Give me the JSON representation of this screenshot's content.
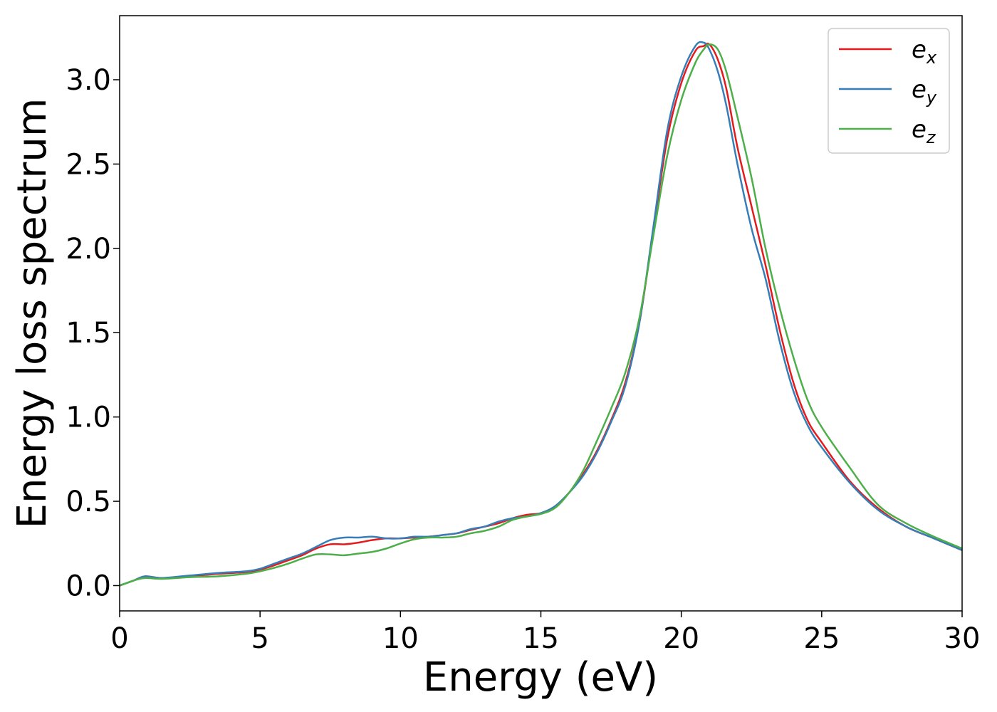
{
  "chart_data": {
    "type": "line",
    "title": "",
    "xlabel": "Energy (eV)",
    "ylabel": "Energy loss spectrum",
    "xlim": [
      0,
      30
    ],
    "ylim": [
      -0.15,
      3.38
    ],
    "xticks": [
      0,
      5,
      10,
      15,
      20,
      25,
      30
    ],
    "xtick_labels": [
      "0",
      "5",
      "10",
      "15",
      "20",
      "25",
      "30"
    ],
    "yticks": [
      0.0,
      0.5,
      1.0,
      1.5,
      2.0,
      2.5,
      3.0
    ],
    "ytick_labels": [
      "0.0",
      "0.5",
      "1.0",
      "1.5",
      "2.0",
      "2.5",
      "3.0"
    ],
    "grid": false,
    "legend_position": "top-right",
    "series": [
      {
        "name": "e",
        "subscript": "x",
        "color": "#e41a1c",
        "x": [
          0,
          0.5,
          0.9,
          1.5,
          2.5,
          3.5,
          4.5,
          5.0,
          5.5,
          6.0,
          6.5,
          7.0,
          7.5,
          8.0,
          8.5,
          9.0,
          9.5,
          10.0,
          10.5,
          11.0,
          11.5,
          12.0,
          12.5,
          13.0,
          13.5,
          14.0,
          14.5,
          15.0,
          15.5,
          16.0,
          16.5,
          17.0,
          17.5,
          18.0,
          18.5,
          19.0,
          19.5,
          20.0,
          20.5,
          20.8,
          21.0,
          21.3,
          21.6,
          22.0,
          22.5,
          23.0,
          23.5,
          24.0,
          24.5,
          25.0,
          26.0,
          27.0,
          28.0,
          29.0,
          30.0
        ],
        "y": [
          0.0,
          0.03,
          0.055,
          0.045,
          0.055,
          0.07,
          0.08,
          0.095,
          0.12,
          0.15,
          0.18,
          0.22,
          0.245,
          0.245,
          0.255,
          0.27,
          0.28,
          0.28,
          0.285,
          0.29,
          0.3,
          0.31,
          0.33,
          0.35,
          0.37,
          0.4,
          0.42,
          0.43,
          0.47,
          0.55,
          0.66,
          0.8,
          0.98,
          1.2,
          1.55,
          2.1,
          2.65,
          2.98,
          3.17,
          3.2,
          3.21,
          3.12,
          2.95,
          2.6,
          2.25,
          1.9,
          1.52,
          1.2,
          0.98,
          0.85,
          0.62,
          0.46,
          0.35,
          0.28,
          0.21
        ]
      },
      {
        "name": "e",
        "subscript": "y",
        "color": "#377eb8",
        "x": [
          0,
          0.5,
          0.9,
          1.5,
          2.5,
          3.5,
          4.5,
          5.0,
          5.5,
          6.0,
          6.5,
          7.0,
          7.5,
          8.0,
          8.5,
          9.0,
          9.5,
          10.0,
          10.5,
          11.0,
          11.5,
          12.0,
          12.5,
          13.0,
          13.5,
          14.0,
          14.5,
          15.0,
          15.5,
          16.0,
          16.5,
          17.0,
          17.5,
          18.0,
          18.5,
          19.0,
          19.5,
          20.0,
          20.5,
          20.8,
          21.0,
          21.3,
          21.6,
          22.0,
          22.5,
          23.0,
          23.5,
          24.0,
          24.5,
          25.0,
          26.0,
          27.0,
          28.0,
          29.0,
          30.0
        ],
        "y": [
          0.0,
          0.03,
          0.055,
          0.045,
          0.06,
          0.075,
          0.085,
          0.1,
          0.13,
          0.16,
          0.19,
          0.23,
          0.27,
          0.285,
          0.285,
          0.29,
          0.28,
          0.28,
          0.29,
          0.29,
          0.3,
          0.31,
          0.335,
          0.35,
          0.38,
          0.4,
          0.41,
          0.43,
          0.47,
          0.55,
          0.65,
          0.79,
          0.97,
          1.18,
          1.55,
          2.12,
          2.7,
          3.02,
          3.2,
          3.22,
          3.18,
          3.05,
          2.85,
          2.5,
          2.12,
          1.82,
          1.45,
          1.15,
          0.95,
          0.82,
          0.61,
          0.45,
          0.35,
          0.28,
          0.21
        ]
      },
      {
        "name": "e",
        "subscript": "z",
        "color": "#4daf4a",
        "x": [
          0,
          0.5,
          0.9,
          1.5,
          2.5,
          3.5,
          4.5,
          5.0,
          5.5,
          6.0,
          6.5,
          7.0,
          7.5,
          8.0,
          8.5,
          9.0,
          9.5,
          10.0,
          10.5,
          11.0,
          11.5,
          12.0,
          12.5,
          13.0,
          13.5,
          14.0,
          14.5,
          15.0,
          15.5,
          16.0,
          16.5,
          17.0,
          17.5,
          18.0,
          18.5,
          19.0,
          19.5,
          20.0,
          20.5,
          20.8,
          21.0,
          21.3,
          21.6,
          22.0,
          22.5,
          23.0,
          23.5,
          24.0,
          24.5,
          25.0,
          26.0,
          27.0,
          28.0,
          29.0,
          30.0
        ],
        "y": [
          0.0,
          0.03,
          0.045,
          0.04,
          0.05,
          0.055,
          0.07,
          0.085,
          0.105,
          0.13,
          0.16,
          0.185,
          0.185,
          0.18,
          0.19,
          0.2,
          0.22,
          0.25,
          0.275,
          0.285,
          0.285,
          0.29,
          0.31,
          0.325,
          0.35,
          0.39,
          0.41,
          0.425,
          0.46,
          0.55,
          0.68,
          0.86,
          1.05,
          1.26,
          1.58,
          2.07,
          2.55,
          2.88,
          3.1,
          3.18,
          3.21,
          3.18,
          3.05,
          2.78,
          2.42,
          2.0,
          1.65,
          1.35,
          1.1,
          0.94,
          0.7,
          0.48,
          0.37,
          0.29,
          0.22
        ]
      }
    ]
  }
}
